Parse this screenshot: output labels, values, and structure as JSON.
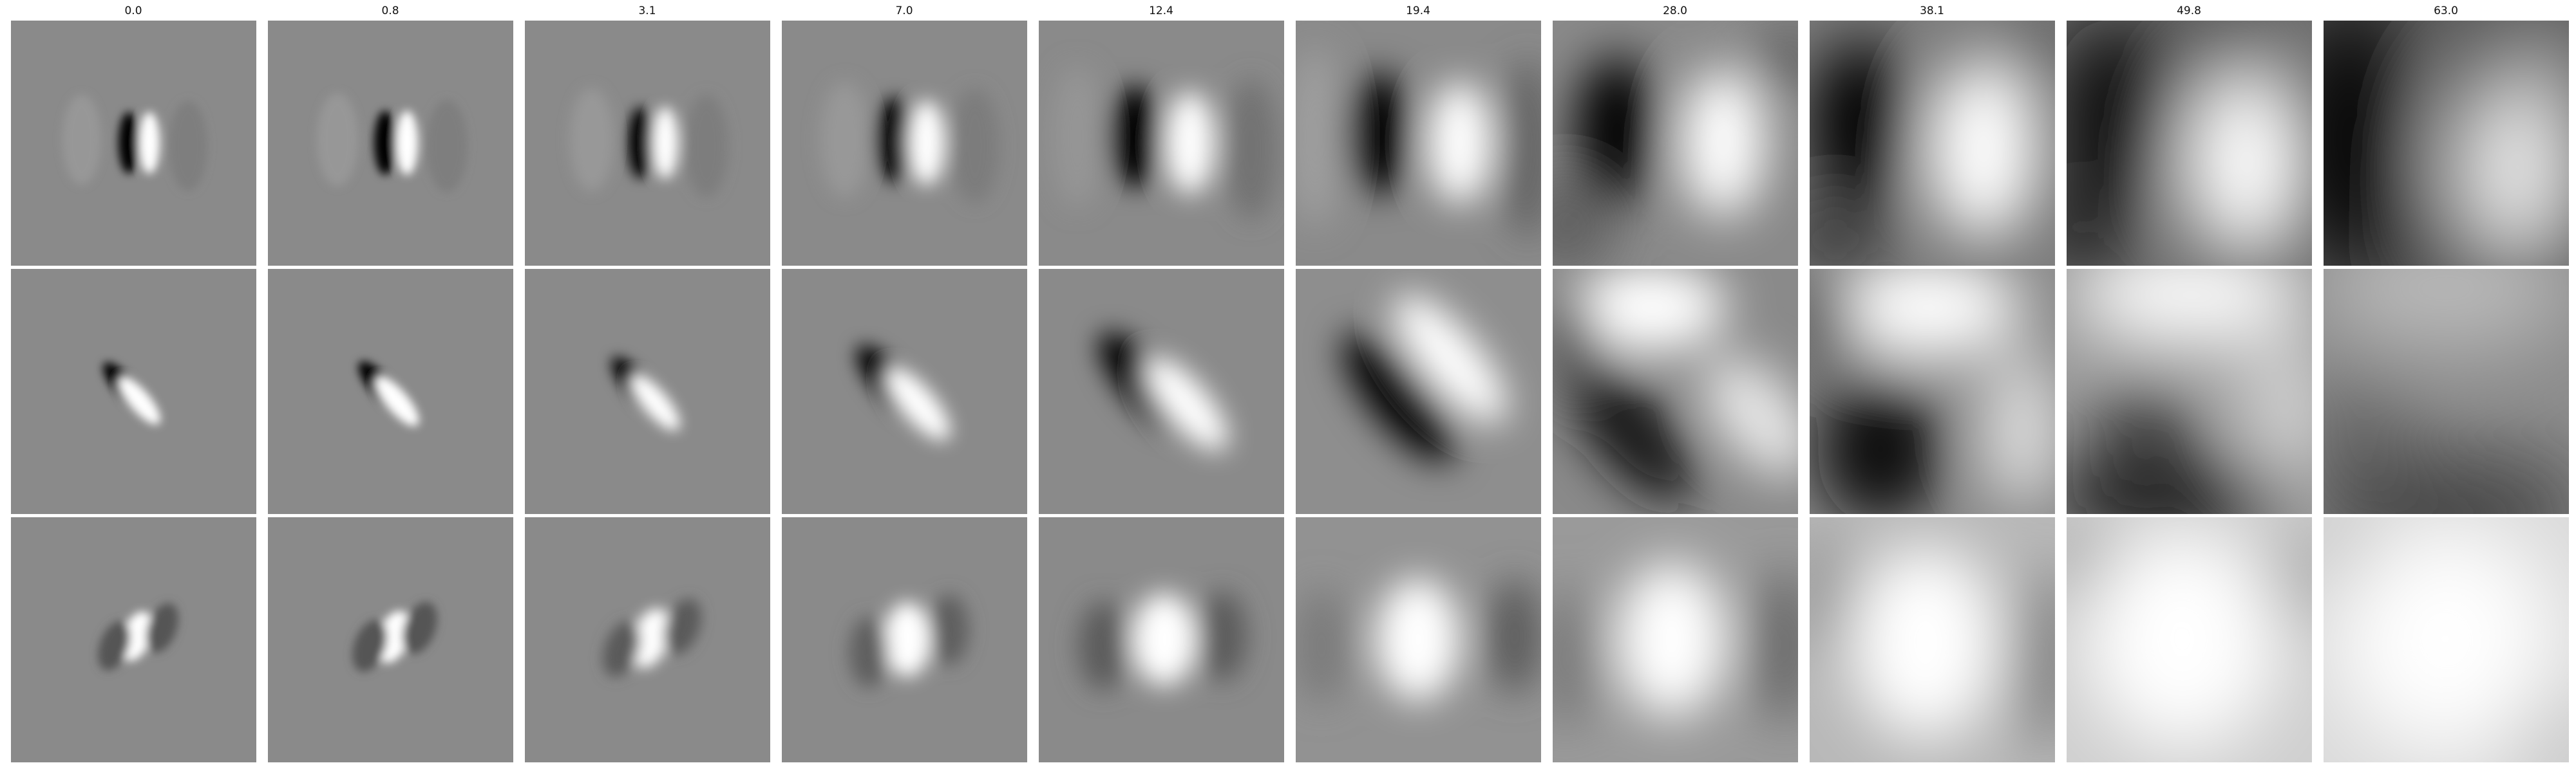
{
  "columns": [
    "0.0",
    "0.8",
    "3.1",
    "7.0",
    "12.4",
    "19.4",
    "28.0",
    "38.1",
    "49.8",
    "63.0"
  ],
  "rows": 3,
  "colormap": {
    "low": "#000000",
    "mid": "#808080",
    "high": "#ffffff"
  }
}
